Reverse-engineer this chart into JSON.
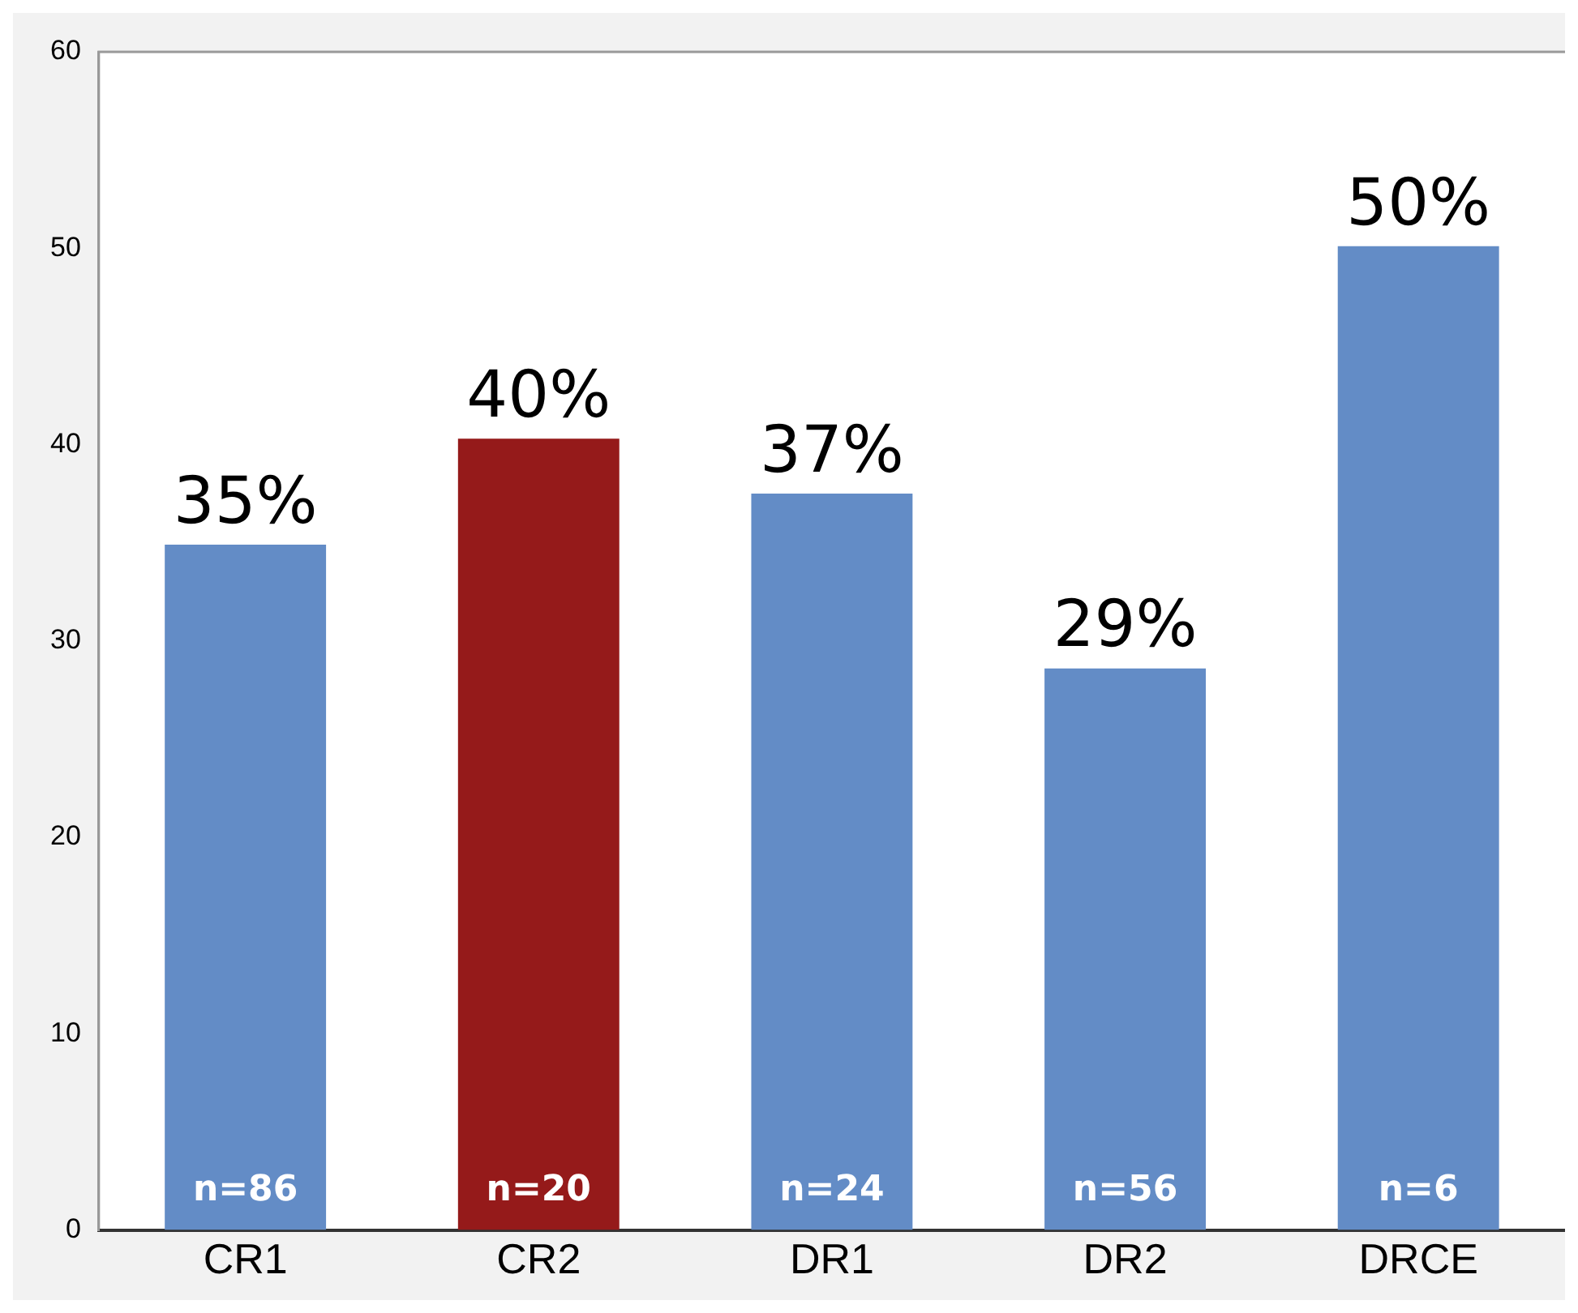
{
  "chart_data": {
    "type": "bar",
    "categories": [
      "CR1",
      "CR2",
      "DR1",
      "DR2",
      "DRCE"
    ],
    "values": [
      34.9,
      40.3,
      37.5,
      28.6,
      50.1
    ],
    "colors": [
      "#638cc6",
      "#951a1a",
      "#638cc6",
      "#638cc6",
      "#638cc6"
    ],
    "value_labels": [
      "35%",
      "40%",
      "37%",
      "29%",
      "50%"
    ],
    "annotations": [
      "n=86",
      "n=20",
      "n=24",
      "n=56",
      "n=6"
    ],
    "ylim": [
      0,
      60
    ],
    "yticks": [
      0,
      10,
      20,
      30,
      40,
      50,
      60
    ],
    "grid": false,
    "legend": false
  }
}
